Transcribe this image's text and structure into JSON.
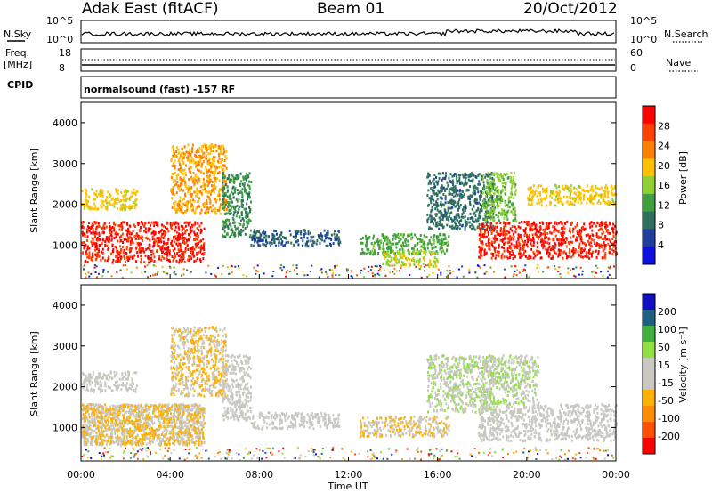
{
  "header": {
    "station": "Adak East (fitACF)",
    "beam": "Beam 01",
    "date": "20/Oct/2012"
  },
  "info_panels": {
    "nsky_label": "N.Sky",
    "nsky_ticks": [
      "10^5",
      "10^0"
    ],
    "nsearch_label": "N.Search",
    "nsearch_ticks": [
      "10^5",
      "10^0"
    ],
    "freq_label": "Freq.",
    "freq_unit": "[MHz]",
    "freq_ticks": [
      "18",
      "8"
    ],
    "nave_label": "Nave",
    "nave_ticks": [
      "60",
      "0"
    ],
    "cpid_label": "CPID",
    "cpid_text": "normalsound (fast) -157 RF"
  },
  "colors": {
    "power_scale": [
      "#1010e0",
      "#1f3f9f",
      "#2f6f5f",
      "#3f9f3f",
      "#8fcf2f",
      "#ffc000",
      "#ff8000",
      "#ff4000",
      "#ff0000"
    ],
    "velocity_scale": [
      "#ff0000",
      "#ff5000",
      "#ff8c00",
      "#ffb000",
      "#c8c8c0",
      "#c8c8c0",
      "#8fe040",
      "#3fb040",
      "#205f7f",
      "#1010c0"
    ]
  },
  "chart_data": [
    {
      "type": "heatmap",
      "panel": "power",
      "ylabel": "Slant Range [km]",
      "ylim": [
        180,
        4500
      ],
      "yticks": [
        "4000",
        "3000",
        "2000",
        "1000"
      ],
      "colorbar_label": "Power [dB]",
      "colorbar_ticks": [
        "28",
        "24",
        "20",
        "16",
        "12",
        "8",
        "4"
      ],
      "colorbar_range": [
        0,
        30
      ],
      "features": [
        {
          "x": [
            0,
            5.5
          ],
          "range_km": [
            600,
            1600
          ],
          "level": 27
        },
        {
          "x": [
            0,
            2.5
          ],
          "range_km": [
            1900,
            2400
          ],
          "level": 18
        },
        {
          "x": [
            4.0,
            6.5
          ],
          "range_km": [
            1800,
            3500
          ],
          "level": 20
        },
        {
          "x": [
            6.3,
            7.6
          ],
          "range_km": [
            1200,
            2800
          ],
          "level": 10
        },
        {
          "x": [
            7.6,
            11.6
          ],
          "range_km": [
            1000,
            1400
          ],
          "level": 7
        },
        {
          "x": [
            12.5,
            16.5
          ],
          "range_km": [
            800,
            1300
          ],
          "level": 12
        },
        {
          "x": [
            13.5,
            16.0
          ],
          "range_km": [
            500,
            900
          ],
          "level": 16
        },
        {
          "x": [
            15.5,
            18.5
          ],
          "range_km": [
            1400,
            2800
          ],
          "level": 8
        },
        {
          "x": [
            17.8,
            24.0
          ],
          "range_km": [
            700,
            1600
          ],
          "level": 27
        },
        {
          "x": [
            18.0,
            19.5
          ],
          "range_km": [
            1600,
            2800
          ],
          "level": 14
        },
        {
          "x": [
            20.0,
            24.0
          ],
          "range_km": [
            2000,
            2500
          ],
          "level": 18
        }
      ]
    },
    {
      "type": "heatmap",
      "panel": "velocity",
      "ylabel": "Slant Range [km]",
      "ylim": [
        180,
        4500
      ],
      "yticks": [
        "4000",
        "3000",
        "2000",
        "1000"
      ],
      "colorbar_label": "Velocity [m s⁻¹]",
      "colorbar_ticks": [
        "200",
        "100",
        "50",
        "15",
        "-15",
        "-50",
        "-100",
        "-200"
      ],
      "colorbar_range": [
        -250,
        250
      ],
      "features": [
        {
          "x": [
            0,
            5.5
          ],
          "range_km": [
            600,
            1600
          ],
          "level": 0
        },
        {
          "x": [
            0,
            5.5
          ],
          "range_km": [
            600,
            1600
          ],
          "level": -60
        },
        {
          "x": [
            0,
            2.5
          ],
          "range_km": [
            1900,
            2400
          ],
          "level": 0
        },
        {
          "x": [
            4.0,
            6.5
          ],
          "range_km": [
            1800,
            3500
          ],
          "level": -50
        },
        {
          "x": [
            6.3,
            7.6
          ],
          "range_km": [
            1200,
            2800
          ],
          "level": 0
        },
        {
          "x": [
            7.6,
            11.6
          ],
          "range_km": [
            1000,
            1400
          ],
          "level": 5
        },
        {
          "x": [
            12.5,
            16.5
          ],
          "range_km": [
            800,
            1300
          ],
          "level": -40
        },
        {
          "x": [
            15.5,
            18.5
          ],
          "range_km": [
            1400,
            2800
          ],
          "level": 40
        },
        {
          "x": [
            17.8,
            24.0
          ],
          "range_km": [
            700,
            1600
          ],
          "level": 0
        },
        {
          "x": [
            18.0,
            20.5
          ],
          "range_km": [
            1600,
            2800
          ],
          "level": 40
        }
      ]
    }
  ],
  "xaxis": {
    "label": "Time UT",
    "ticks": [
      "00:00",
      "04:00",
      "08:00",
      "12:00",
      "16:00",
      "20:00",
      "00:00"
    ],
    "range_hours": [
      0,
      24
    ]
  }
}
